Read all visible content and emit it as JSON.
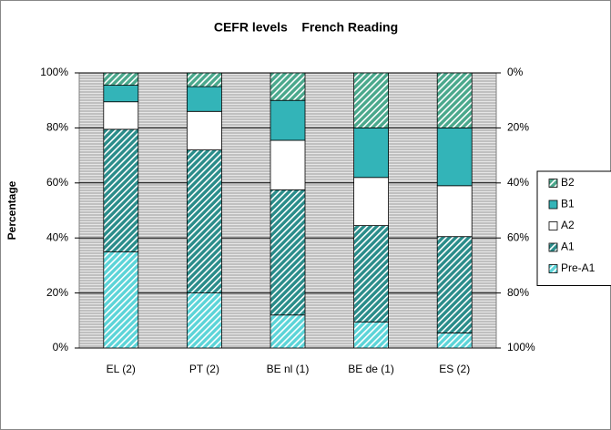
{
  "chart_data": {
    "type": "stacked_bar",
    "title": "CEFR levels    French Reading",
    "y_label": "Percentage",
    "categories": [
      "EL (2)",
      "PT (2)",
      "BE nl (1)",
      "BE de (1)",
      "ES (2)"
    ],
    "series": [
      {
        "name": "Pre-A1",
        "color": "#5cd4d8",
        "hatch": true,
        "values": [
          35,
          20,
          12,
          9.5,
          5.5
        ]
      },
      {
        "name": "A1",
        "color": "#2a8c8a",
        "hatch": true,
        "values": [
          44.5,
          52,
          45.5,
          35,
          35
        ]
      },
      {
        "name": "A2",
        "color": "#ffffff",
        "hatch": false,
        "values": [
          10,
          14,
          18,
          17.5,
          18.5
        ]
      },
      {
        "name": "B1",
        "color": "#33b4b8",
        "hatch": false,
        "values": [
          6,
          9,
          14.5,
          18,
          21
        ]
      },
      {
        "name": "B2",
        "color": "#4aa88c",
        "hatch": true,
        "values": [
          4.5,
          5,
          10,
          20,
          20
        ]
      }
    ],
    "ylim": [
      0,
      100
    ],
    "yticks": [
      {
        "value": 0,
        "label": "0%"
      },
      {
        "value": 20,
        "label": "20%"
      },
      {
        "value": 40,
        "label": "40%"
      },
      {
        "value": 60,
        "label": "60%"
      },
      {
        "value": 80,
        "label": "80%"
      },
      {
        "value": 100,
        "label": "100%"
      }
    ],
    "y2lim": [
      100,
      0
    ],
    "y2ticks": [
      {
        "value": 0,
        "label": "0%"
      },
      {
        "value": 20,
        "label": "20%"
      },
      {
        "value": 40,
        "label": "40%"
      },
      {
        "value": 60,
        "label": "60%"
      },
      {
        "value": 80,
        "label": "80%"
      },
      {
        "value": 100,
        "label": "100%"
      }
    ],
    "grid": true,
    "legend": "right"
  }
}
